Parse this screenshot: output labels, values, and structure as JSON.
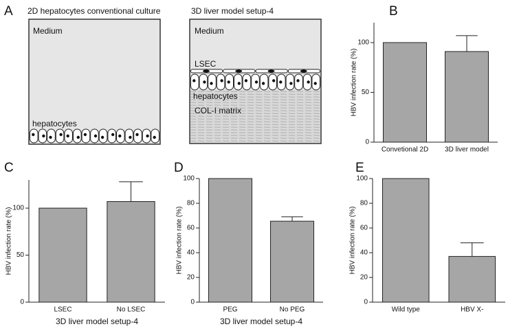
{
  "diagram": {
    "label": "A",
    "left": {
      "title": "2D hepatocytes conventional culture",
      "medium": "Medium",
      "cells": "hepatocytes"
    },
    "right": {
      "title": "3D liver model setup-4",
      "medium": "Medium",
      "lsec": "LSEC",
      "cells": "hepatocytes",
      "matrix": "COL-I matrix"
    }
  },
  "chart_data": [
    {
      "type": "bar",
      "label": "B",
      "y_label": "HBV infection rate (%)",
      "categories": [
        "Convetional 2D",
        "3D liver model"
      ],
      "values": [
        100,
        91
      ],
      "errors": [
        null,
        16
      ],
      "color": "#a6a6a6",
      "ylim": [
        0,
        120
      ],
      "yticks": [
        0,
        50,
        100
      ]
    },
    {
      "type": "bar",
      "label": "C",
      "y_label": "HBV infection rate (%)",
      "x_label": "3D liver model setup-4",
      "categories": [
        "LSEC",
        "No LSEC"
      ],
      "values": [
        100,
        107
      ],
      "errors": [
        null,
        21
      ],
      "color": "#a6a6a6",
      "ylim": [
        0,
        130
      ],
      "yticks": [
        0,
        50,
        100
      ]
    },
    {
      "type": "bar",
      "label": "D",
      "y_label": "HBV infection rate (%)",
      "x_label": "3D liver model setup-4",
      "categories": [
        "PEG",
        "No PEG"
      ],
      "values": [
        100,
        65.5
      ],
      "errors": [
        null,
        3.5
      ],
      "color": "#a6a6a6",
      "ylim": [
        0,
        100
      ],
      "yticks": [
        0,
        20,
        40,
        60,
        80,
        100
      ]
    },
    {
      "type": "bar",
      "label": "E",
      "y_label": "HBV infection rate (%)",
      "categories": [
        "Wild type",
        "HBV X-"
      ],
      "values": [
        100,
        37
      ],
      "errors": [
        null,
        11
      ],
      "color": "#a6a6a6",
      "ylim": [
        0,
        100
      ],
      "yticks": [
        0,
        20,
        40,
        60,
        80,
        100
      ]
    }
  ]
}
